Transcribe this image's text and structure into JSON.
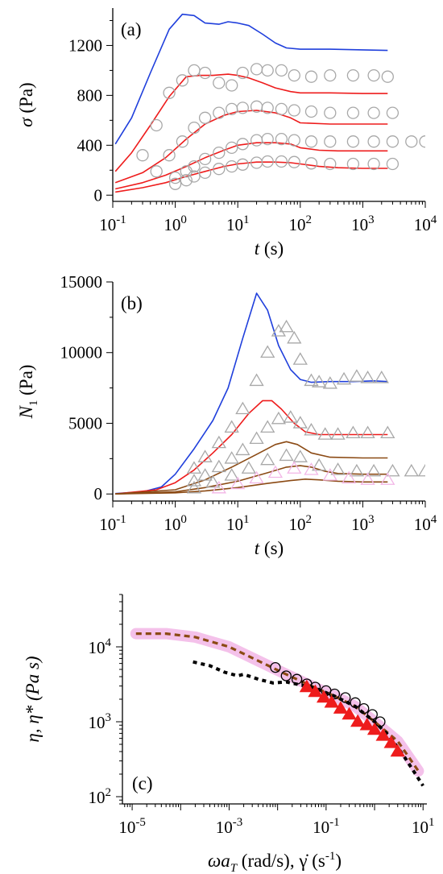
{
  "chart_data": [
    {
      "type": "line",
      "panel_label": "(a)",
      "xlabel": {
        "main": "t",
        "unit": " (s)"
      },
      "ylabel": {
        "main": "σ",
        "unit": " (Pa)"
      },
      "xscale": "log",
      "xlim": [
        0.1,
        10000
      ],
      "ylim": [
        -50,
        1500
      ],
      "xtick_labels": [
        {
          "base": "10",
          "exp": "-1",
          "v": 0.1
        },
        {
          "base": "10",
          "exp": "0",
          "v": 1
        },
        {
          "base": "10",
          "exp": "1",
          "v": 10
        },
        {
          "base": "10",
          "exp": "2",
          "v": 100
        },
        {
          "base": "10",
          "exp": "3",
          "v": 1000
        },
        {
          "base": "10",
          "exp": "4",
          "v": 10000
        }
      ],
      "yticks": [
        0,
        400,
        800,
        1200
      ],
      "ytick_labels": [
        "0",
        "400",
        "800",
        "1200"
      ],
      "colors": {
        "blue": "#1f3fdc",
        "red": "#ee1c1c",
        "gray": "#a8a8a8"
      },
      "series": [
        {
          "kind": "line",
          "color": "blue",
          "x": [
            0.11,
            0.2,
            0.4,
            0.8,
            1.3,
            2,
            3,
            5,
            7,
            10,
            15,
            25,
            40,
            60,
            100,
            300,
            1000,
            2500
          ],
          "y": [
            410,
            620,
            980,
            1330,
            1450,
            1440,
            1380,
            1370,
            1390,
            1380,
            1360,
            1290,
            1220,
            1180,
            1170,
            1170,
            1165,
            1160
          ]
        },
        {
          "kind": "line",
          "color": "red",
          "x": [
            0.11,
            0.2,
            0.4,
            0.8,
            1.5,
            2.5,
            4,
            7,
            10,
            15,
            25,
            40,
            70,
            100,
            300,
            1000,
            2500
          ],
          "y": [
            190,
            340,
            560,
            790,
            950,
            960,
            960,
            970,
            960,
            940,
            900,
            860,
            830,
            820,
            820,
            815,
            815
          ]
        },
        {
          "kind": "line",
          "color": "red",
          "x": [
            0.11,
            0.3,
            0.7,
            1.5,
            3,
            6,
            10,
            20,
            40,
            70,
            100,
            300,
            1000,
            2500
          ],
          "y": [
            100,
            180,
            300,
            450,
            570,
            640,
            670,
            680,
            660,
            620,
            580,
            570,
            570,
            570
          ]
        },
        {
          "kind": "line",
          "color": "red",
          "x": [
            0.11,
            0.3,
            0.7,
            1.5,
            3,
            6,
            10,
            20,
            40,
            70,
            100,
            200,
            400,
            1000,
            2500
          ],
          "y": [
            50,
            100,
            160,
            230,
            300,
            360,
            400,
            420,
            420,
            410,
            380,
            360,
            355,
            355,
            355
          ]
        },
        {
          "kind": "line",
          "color": "red",
          "x": [
            0.11,
            0.3,
            0.7,
            1.5,
            3,
            6,
            10,
            20,
            40,
            70,
            100,
            200,
            400,
            1000,
            2500
          ],
          "y": [
            25,
            60,
            100,
            150,
            190,
            230,
            250,
            265,
            265,
            260,
            250,
            230,
            220,
            215,
            215
          ]
        },
        {
          "kind": "circles",
          "color": "gray",
          "x": [
            0.3,
            0.5,
            0.8,
            1.3,
            2,
            3,
            5,
            8,
            12,
            20,
            30,
            50,
            80,
            150,
            300,
            700,
            1500,
            2500
          ],
          "y": [
            320,
            560,
            820,
            920,
            1000,
            980,
            900,
            880,
            980,
            1010,
            1000,
            1000,
            960,
            950,
            960,
            960,
            960,
            950
          ]
        },
        {
          "kind": "circles",
          "color": "gray",
          "x": [
            0.5,
            0.8,
            1.3,
            2,
            3,
            5,
            8,
            12,
            20,
            30,
            50,
            80,
            150,
            300,
            700,
            1500,
            3000
          ],
          "y": [
            190,
            320,
            430,
            540,
            620,
            660,
            690,
            700,
            710,
            700,
            690,
            680,
            670,
            660,
            660,
            660,
            660
          ]
        },
        {
          "kind": "circles",
          "color": "gray",
          "x": [
            1,
            1.5,
            2,
            3,
            5,
            8,
            12,
            20,
            30,
            50,
            80,
            150,
            300,
            700,
            1500,
            3000,
            6000,
            10000
          ],
          "y": [
            140,
            190,
            230,
            290,
            340,
            380,
            410,
            440,
            450,
            450,
            440,
            430,
            430,
            430,
            430,
            430,
            430,
            430
          ]
        },
        {
          "kind": "circles",
          "color": "gray",
          "x": [
            1,
            1.5,
            2,
            3,
            5,
            8,
            12,
            20,
            30,
            50,
            80,
            150,
            300,
            700,
            1500,
            3000
          ],
          "y": [
            90,
            120,
            150,
            180,
            210,
            230,
            245,
            260,
            270,
            270,
            265,
            255,
            250,
            250,
            250,
            250
          ]
        }
      ]
    },
    {
      "type": "line",
      "panel_label": "(b)",
      "xlabel": {
        "main": "t",
        "unit": " (s)"
      },
      "ylabel": {
        "main": "N",
        "sub": "1",
        "unit": " (Pa)"
      },
      "xscale": "log",
      "xlim": [
        0.1,
        10000
      ],
      "ylim": [
        -500,
        15000
      ],
      "xtick_labels": [
        {
          "base": "10",
          "exp": "-1",
          "v": 0.1
        },
        {
          "base": "10",
          "exp": "0",
          "v": 1
        },
        {
          "base": "10",
          "exp": "1",
          "v": 10
        },
        {
          "base": "10",
          "exp": "2",
          "v": 100
        },
        {
          "base": "10",
          "exp": "3",
          "v": 1000
        },
        {
          "base": "10",
          "exp": "4",
          "v": 10000
        }
      ],
      "yticks": [
        0,
        5000,
        10000,
        15000
      ],
      "ytick_labels": [
        "0",
        "5000",
        "10000",
        "15000"
      ],
      "colors": {
        "blue": "#1f3fdc",
        "red": "#ee1c1c",
        "brown": "#8b4a14",
        "gray": "#a8a8a8",
        "pink": "#f2b6e6"
      },
      "series": [
        {
          "kind": "line",
          "color": "blue",
          "x": [
            0.11,
            0.3,
            0.6,
            1,
            2,
            4,
            7,
            12,
            20,
            30,
            45,
            70,
            100,
            150,
            300,
            700,
            1500,
            2500
          ],
          "y": [
            30,
            150,
            500,
            1400,
            3200,
            5200,
            7500,
            11000,
            14200,
            13000,
            10500,
            8800,
            8100,
            7900,
            7950,
            7950,
            8000,
            7950
          ]
        },
        {
          "kind": "line",
          "color": "red",
          "x": [
            0.11,
            0.5,
            1,
            2,
            4,
            8,
            15,
            25,
            35,
            50,
            80,
            120,
            200,
            400,
            1000,
            2500
          ],
          "y": [
            0,
            300,
            800,
            1700,
            2900,
            4200,
            5700,
            6600,
            6600,
            6000,
            5000,
            4400,
            4200,
            4200,
            4200,
            4200
          ]
        },
        {
          "kind": "line",
          "color": "brown",
          "x": [
            0.11,
            1,
            3,
            8,
            20,
            40,
            60,
            90,
            150,
            300,
            1000,
            2500
          ],
          "y": [
            0,
            300,
            1000,
            1900,
            2800,
            3500,
            3700,
            3500,
            2900,
            2600,
            2550,
            2550
          ]
        },
        {
          "kind": "line",
          "color": "brown",
          "x": [
            0.11,
            1,
            3,
            10,
            30,
            60,
            100,
            150,
            250,
            400,
            1000,
            2500
          ],
          "y": [
            0,
            150,
            450,
            900,
            1500,
            1900,
            2000,
            1900,
            1600,
            1450,
            1400,
            1400
          ]
        },
        {
          "kind": "line",
          "color": "brown",
          "x": [
            0.11,
            1,
            3,
            10,
            30,
            70,
            120,
            200,
            400,
            1000,
            2500
          ],
          "y": [
            0,
            80,
            220,
            450,
            750,
            950,
            1050,
            1000,
            900,
            850,
            850
          ]
        },
        {
          "kind": "triangles",
          "color": "gray",
          "x": [
            2,
            3,
            5,
            8,
            12,
            20,
            30,
            45,
            60,
            80,
            100,
            150,
            200,
            300,
            500,
            800,
            1200,
            2000
          ],
          "y": [
            1800,
            2600,
            3600,
            4700,
            6000,
            8000,
            10000,
            11500,
            11800,
            11000,
            9500,
            8000,
            7900,
            7800,
            8100,
            8300,
            8200,
            8200
          ]
        },
        {
          "kind": "triangles",
          "color": "gray",
          "x": [
            2,
            3,
            5,
            8,
            12,
            20,
            30,
            45,
            70,
            100,
            150,
            250,
            400,
            700,
            1200,
            2500
          ],
          "y": [
            900,
            1300,
            1900,
            2500,
            3100,
            3900,
            4700,
            5300,
            5400,
            5000,
            4500,
            4200,
            4200,
            4300,
            4300,
            4300
          ]
        },
        {
          "kind": "triangles",
          "color": "gray",
          "x": [
            2,
            4,
            8,
            15,
            30,
            60,
            100,
            200,
            400,
            800,
            1500,
            3000,
            6000,
            10000
          ],
          "y": [
            400,
            800,
            1300,
            1800,
            2400,
            2700,
            2600,
            2000,
            1700,
            1600,
            1600,
            1600,
            1600,
            1600
          ]
        },
        {
          "kind": "triangles",
          "color": "pink",
          "x": [
            5,
            10,
            20,
            40,
            80,
            150,
            300,
            600,
            1200,
            2500
          ],
          "y": [
            400,
            700,
            1100,
            1500,
            1800,
            1700,
            1300,
            1100,
            1000,
            1000
          ]
        }
      ]
    },
    {
      "type": "line",
      "panel_label": "(c)",
      "xlabel": {
        "main": "ωa",
        "sub": "T",
        "unit": " (rad/s), γ̇ (s",
        "sup": "-1",
        "unit2": ")"
      },
      "ylabel": {
        "main": "η, η* (Pa s)"
      },
      "xscale": "log",
      "yscale": "log",
      "xlim": [
        6.3e-06,
        12
      ],
      "ylim": [
        80,
        50000
      ],
      "xtick_labels": [
        {
          "base": "10",
          "exp": "-5",
          "v": 1e-05
        },
        {
          "base": "10",
          "exp": "-3",
          "v": 0.001
        },
        {
          "base": "10",
          "exp": "-1",
          "v": 0.1
        },
        {
          "base": "10",
          "exp": "1",
          "v": 10
        }
      ],
      "ytick_labels": [
        {
          "base": "10",
          "exp": "2",
          "v": 100
        },
        {
          "base": "10",
          "exp": "3",
          "v": 1000
        },
        {
          "base": "10",
          "exp": "4",
          "v": 10000
        }
      ],
      "colors": {
        "black": "#000000",
        "brown": "#8b4a14",
        "pink": "#f2b6e6",
        "red": "#ee1c1c"
      },
      "series": [
        {
          "kind": "band",
          "color": "pink",
          "x": [
            1.2e-05,
            5e-05,
            0.0002,
            0.001,
            0.004,
            0.015,
            0.05,
            0.15,
            0.4,
            1,
            3,
            8
          ],
          "y": [
            15000,
            15000,
            13500,
            10000,
            6500,
            4300,
            3000,
            2200,
            1600,
            1000,
            550,
            220
          ]
        },
        {
          "kind": "dashed",
          "color": "brown",
          "x": [
            1.2e-05,
            5e-05,
            0.0002,
            0.001,
            0.004,
            0.015,
            0.05,
            0.15,
            0.4,
            1,
            3,
            8
          ],
          "y": [
            15000,
            15000,
            13500,
            10000,
            6500,
            4300,
            3000,
            2200,
            1600,
            1000,
            550,
            220
          ]
        },
        {
          "kind": "dotted",
          "color": "black",
          "x": [
            0.00018,
            0.0004,
            0.0008,
            0.0015,
            0.002,
            0.004,
            0.008,
            0.015,
            0.03,
            0.06,
            0.15,
            0.4,
            1,
            2,
            4,
            10
          ],
          "y": [
            6300,
            5600,
            4600,
            4100,
            4300,
            3700,
            3300,
            3400,
            3100,
            2800,
            2200,
            1600,
            1000,
            650,
            350,
            140
          ]
        },
        {
          "kind": "circles",
          "color": "black",
          "x": [
            0.009,
            0.015,
            0.025,
            0.04,
            0.06,
            0.1,
            0.15,
            0.25,
            0.4,
            0.6,
            0.9,
            1.3
          ],
          "y": [
            5300,
            4100,
            3700,
            3200,
            2900,
            2600,
            2350,
            2100,
            1800,
            1500,
            1250,
            1000
          ]
        },
        {
          "kind": "triangles",
          "color": "red",
          "x": [
            0.04,
            0.06,
            0.09,
            0.13,
            0.2,
            0.3,
            0.45,
            0.7,
            1,
            1.5,
            2.2,
            3
          ],
          "y": [
            2900,
            2500,
            2100,
            1800,
            1500,
            1250,
            1000,
            900,
            780,
            650,
            520,
            400
          ]
        }
      ]
    }
  ]
}
